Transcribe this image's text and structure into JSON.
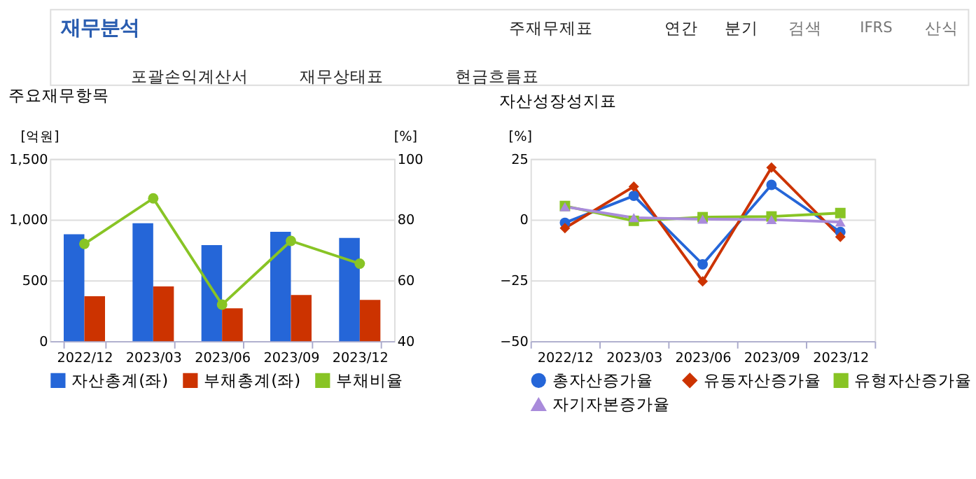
{
  "chart_data": [
    {
      "type": "bar",
      "title": "주요재무항목",
      "ylabel": "[억원]",
      "y2label": "[%]",
      "annotations": [
        "재무분석",
        "주재무제표",
        "연간",
        "분기",
        "검색",
        "IFRS",
        "산식",
        "포괄손익계산서",
        "재무상태표",
        "현금흐름표"
      ],
      "categories": [
        "2022/12",
        "2023/03",
        "2023/06",
        "2023/09",
        "2023/12"
      ],
      "series": [
        {
          "name": "자산총계(좌)",
          "type": "bar",
          "color": "#2566d8",
          "values": [
            880,
            970,
            790,
            900,
            850
          ]
        },
        {
          "name": "부채총계(좌)",
          "type": "bar",
          "color": "#cc3300",
          "values": [
            370,
            450,
            270,
            380,
            340
          ]
        },
        {
          "name": "부채비율",
          "type": "line",
          "axis": "y2",
          "color": "#88c425",
          "marker": "circle",
          "values": [
            72,
            87,
            52,
            73,
            65.5
          ]
        }
      ],
      "ylim": [
        0,
        1500
      ],
      "yticks": [
        0,
        500,
        {
          "value": 1000,
          "label": "1,000"
        },
        {
          "value": 1500,
          "label": "1,500"
        }
      ],
      "y2lim": [
        40,
        100
      ],
      "y2ticks": [
        40,
        60,
        80,
        100
      ],
      "grid": "y",
      "legend": "bottom",
      "line_style": "solid"
    },
    {
      "type": "line",
      "title": "자산성장성지표",
      "ylabel": "[%]",
      "categories": [
        "2022/12",
        "2023/03",
        "2023/06",
        "2023/09",
        "2023/12"
      ],
      "series": [
        {
          "name": "총자산증가율",
          "color": "#2566d8",
          "marker": "circle",
          "values": [
            -1.3,
            9.8,
            -18.4,
            14.3,
            -5.1
          ]
        },
        {
          "name": "유동자산증가율",
          "color": "#cc3300",
          "marker": "diamond",
          "values": [
            -3.5,
            13.6,
            -25.4,
            21.4,
            -7.1
          ]
        },
        {
          "name": "유형자산증가율",
          "color": "#88c425",
          "marker": "square",
          "values": [
            5.6,
            -0.5,
            1,
            1.3,
            2.7
          ]
        },
        {
          "name": "자기자본증가율",
          "color": "#a98bdb",
          "marker": "triangle",
          "values": [
            5.3,
            0.8,
            0.2,
            0,
            -1
          ]
        }
      ],
      "ylim": [
        -50,
        25
      ],
      "yticks": [
        -50,
        -25,
        0,
        25
      ],
      "grid": "y",
      "legend": "bottom",
      "line_style": "solid"
    }
  ]
}
